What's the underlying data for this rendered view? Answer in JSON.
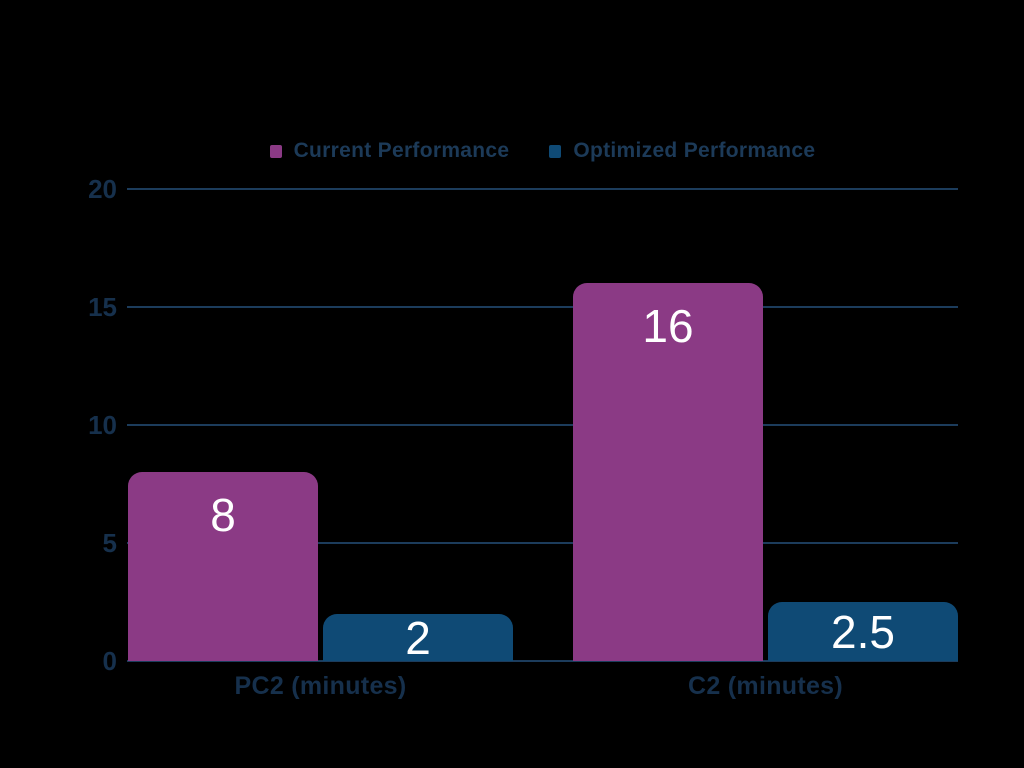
{
  "background_color": "#000000",
  "chart_data": {
    "type": "bar",
    "title": "",
    "xlabel": "",
    "ylabel": "",
    "categories": [
      "PC2 (minutes)",
      "C2 (minutes)"
    ],
    "series": [
      {
        "name": "Current Performance",
        "color": "#8b3a85",
        "values": [
          8,
          16
        ],
        "data_labels": [
          "8",
          "16"
        ]
      },
      {
        "name": "Optimized Performance",
        "color": "#0f4a75",
        "values": [
          2,
          2.5
        ],
        "data_labels": [
          "2",
          "2.5"
        ]
      }
    ],
    "ylim": [
      0,
      20
    ],
    "yticks": [
      20,
      15,
      10,
      5,
      0
    ],
    "grid": true,
    "legend_position": "top",
    "colors": {
      "data_label": "#ffffff",
      "axis_text": "#16304c",
      "legend_text": "#1c3a58",
      "gridline": "#1c3c5c",
      "baseline": "#1c3c5c"
    }
  }
}
